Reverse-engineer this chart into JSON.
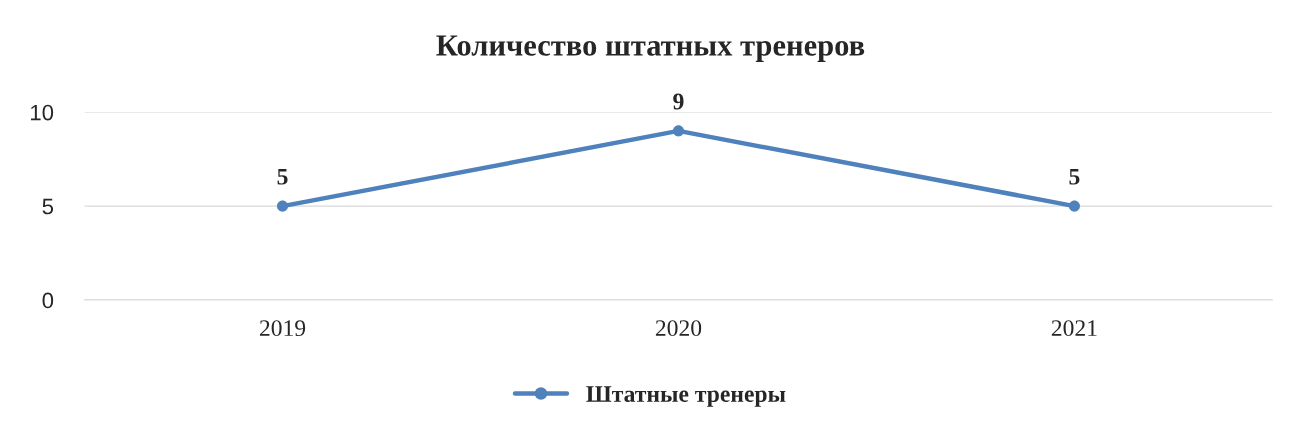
{
  "chart_data": {
    "type": "line",
    "title": "Количество штатных тренеров",
    "categories": [
      "2019",
      "2020",
      "2021"
    ],
    "series": [
      {
        "name": "Штатные тренеры",
        "color": "#4f81bd",
        "values": [
          5,
          9,
          5
        ]
      }
    ],
    "ylim": [
      0,
      10
    ],
    "yticks": [
      0,
      5,
      10
    ],
    "grid": "y",
    "legend": "bottom",
    "marker": "circle",
    "line_style": "solid",
    "data_labels": true
  }
}
